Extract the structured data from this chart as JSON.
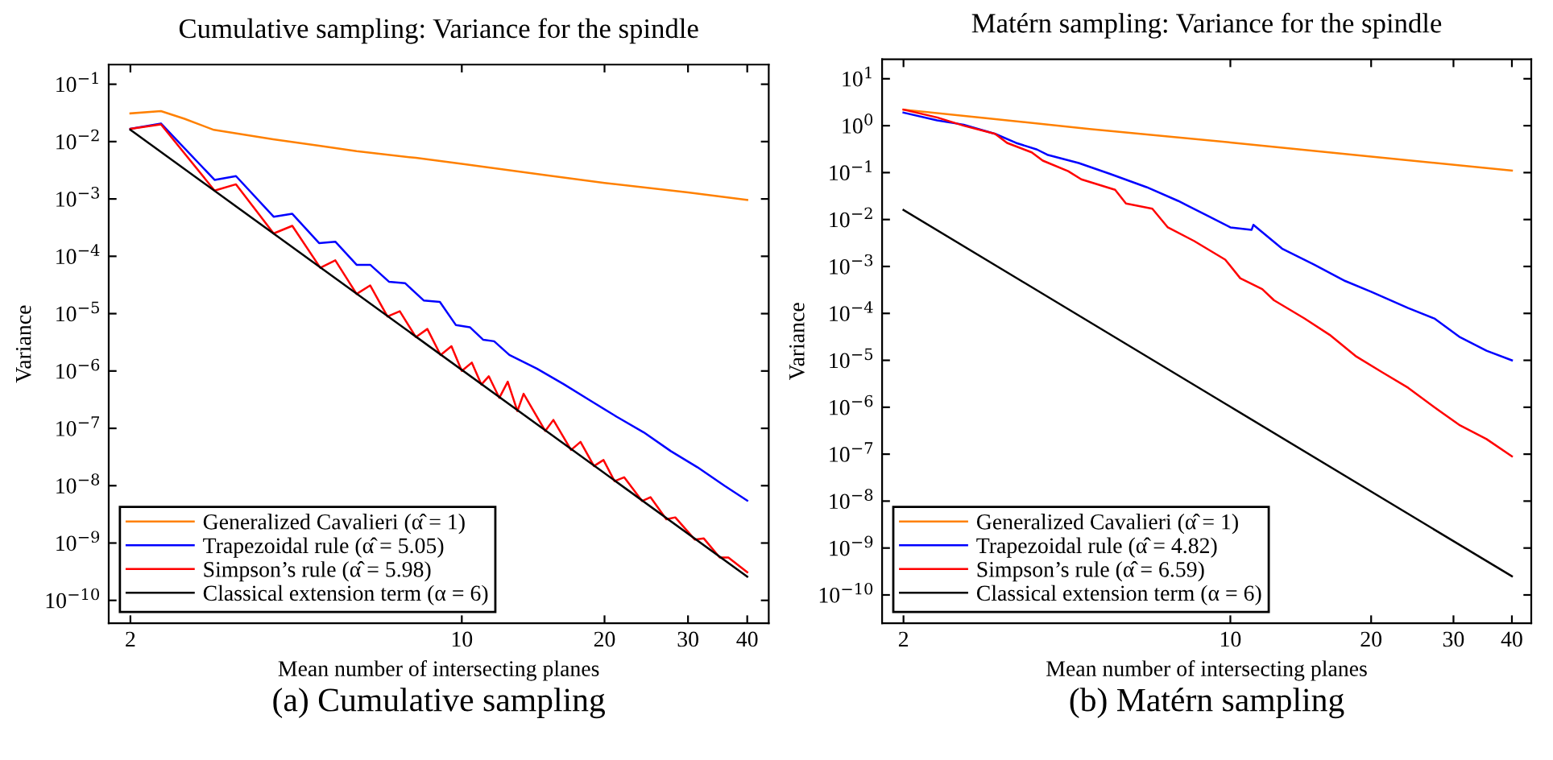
{
  "chart_data": [
    {
      "type": "line",
      "title": "Cumulative sampling: Variance for the spindle",
      "xlabel": "Mean number of intersecting planes",
      "ylabel": "Variance",
      "log": "xy",
      "grid": false,
      "legend": "bottom left",
      "xlim": [
        1.8,
        44.4
      ],
      "ylim": [
        4e-11,
        0.22
      ],
      "xticks": [
        2,
        10,
        20,
        30,
        40
      ],
      "yticks": [
        {
          "value": 0.1,
          "label": "10$^{−1}$"
        },
        {
          "value": 0.01,
          "label": "10$^{−2}$"
        },
        {
          "value": 0.001,
          "label": "10$^{−3}$"
        },
        {
          "value": 0.0001,
          "label": "10$^{−4}$"
        },
        {
          "value": 1e-05,
          "label": "10$^{−5}$"
        },
        {
          "value": 1e-06,
          "label": "10$^{−6}$"
        },
        {
          "value": 1e-07,
          "label": "10$^{−7}$"
        },
        {
          "value": 1e-08,
          "label": "10$^{−8}$"
        },
        {
          "value": 1e-09,
          "label": "10$^{−9}$"
        },
        {
          "value": 1e-10,
          "label": "10$^{−10}$"
        }
      ],
      "annotations": [
        "(a) Cumulative sampling"
      ],
      "series": [
        {
          "name": "Generalized Cavalieri (α̂ = 1)",
          "color": "#ff8000",
          "x": [
            2,
            2.32,
            2.6,
            3.0,
            4,
            5,
            6,
            8,
            10,
            15,
            20,
            30,
            40
          ],
          "values": [
            0.031,
            0.034,
            0.025,
            0.016,
            0.011,
            0.0085,
            0.0068,
            0.0052,
            0.0041,
            0.0026,
            0.0019,
            0.0013,
            0.00096
          ]
        },
        {
          "name": "Trapezoidal rule (α̂ = 5.05)",
          "color": "#0000ff",
          "x": [
            2,
            2.32,
            3.01,
            3.34,
            4.01,
            4.39,
            5.0,
            5.41,
            6.0,
            6.41,
            7.02,
            7.59,
            8.31,
            8.99,
            9.72,
            10.4,
            11.1,
            11.7,
            12.6,
            14.4,
            16.4,
            18.6,
            21.2,
            24.2,
            27.6,
            31.4,
            35.8,
            40
          ],
          "values": [
            0.0167,
            0.0207,
            0.00215,
            0.0025,
            0.00049,
            0.00055,
            0.00017,
            0.00018,
            7.1e-05,
            7.1e-05,
            3.6e-05,
            3.4e-05,
            1.7e-05,
            1.6e-05,
            6.3e-06,
            5.8e-06,
            3.5e-06,
            3.3e-06,
            1.9e-06,
            1.1e-06,
            5.9e-07,
            3.1e-07,
            1.6e-07,
            8.5e-08,
            4e-08,
            2.1e-08,
            1e-08,
            5.5e-09
          ]
        },
        {
          "name": "Simpson’s rule (α̂ = 5.98)",
          "color": "#ff0000",
          "x": [
            2,
            2.32,
            3.01,
            3.34,
            4.01,
            4.39,
            5.03,
            5.41,
            6.0,
            6.41,
            6.97,
            7.4,
            8.0,
            8.46,
            9.02,
            9.51,
            10.0,
            10.5,
            11.0,
            11.4,
            12.0,
            12.5,
            13.1,
            13.5,
            15,
            15.6,
            17,
            17.8,
            19,
            19.9,
            21,
            22,
            24,
            25,
            27,
            28.2,
            31,
            32.4,
            35,
            36.5,
            40
          ],
          "values": [
            0.0167,
            0.02,
            0.0014,
            0.0018,
            0.00025,
            0.00034,
            6.3e-05,
            8.5e-05,
            2.2e-05,
            3.1e-05,
            8.9e-06,
            1.1e-05,
            3.9e-06,
            5.4e-06,
            1.9e-06,
            2.7e-06,
            1e-06,
            1.4e-06,
            5.8e-07,
            8.1e-07,
            3.4e-07,
            6.5e-07,
            2e-07,
            4e-07,
            9e-08,
            1.4e-07,
            4.2e-08,
            5.8e-08,
            2.2e-08,
            2.8e-08,
            1.2e-08,
            1.4e-08,
            5.4e-09,
            6.3e-09,
            2.6e-09,
            2.8e-09,
            1.15e-09,
            1.2e-09,
            5.6e-10,
            5.6e-10,
            3.1e-10
          ]
        },
        {
          "name": "Classical extension term (α = 6)",
          "color": "#000000",
          "x": [
            2,
            40
          ],
          "values": [
            0.016,
            2.6e-10
          ]
        }
      ]
    },
    {
      "type": "line",
      "title": "Matérn sampling: Variance for the spindle",
      "xlabel": "Mean number of intersecting planes",
      "ylabel": "Variance",
      "log": "xy",
      "grid": false,
      "legend": "bottom left",
      "xlim": [
        1.8,
        44
      ],
      "ylim": [
        2.5e-11,
        26
      ],
      "xticks": [
        2,
        10,
        20,
        30,
        40
      ],
      "yticks": [
        {
          "value": 10,
          "label": "10$^{1}$"
        },
        {
          "value": 1,
          "label": "10$^{0}$"
        },
        {
          "value": 0.1,
          "label": "10$^{−1}$"
        },
        {
          "value": 0.01,
          "label": "10$^{−2}$"
        },
        {
          "value": 0.001,
          "label": "10$^{−3}$"
        },
        {
          "value": 0.0001,
          "label": "10$^{−4}$"
        },
        {
          "value": 1e-05,
          "label": "10$^{−5}$"
        },
        {
          "value": 1e-06,
          "label": "10$^{−6}$"
        },
        {
          "value": 1e-07,
          "label": "10$^{−7}$"
        },
        {
          "value": 1e-08,
          "label": "10$^{−8}$"
        },
        {
          "value": 1e-09,
          "label": "10$^{−9}$"
        },
        {
          "value": 1e-10,
          "label": "10$^{−10}$"
        }
      ],
      "annotations": [
        "(b) Matérn sampling"
      ],
      "series": [
        {
          "name": "Generalized Cavalieri (α̂ = 1)",
          "color": "#ff8000",
          "x": [
            2,
            3,
            5,
            10,
            20,
            40
          ],
          "values": [
            2.2,
            1.45,
            0.85,
            0.44,
            0.22,
            0.11
          ]
        },
        {
          "name": "Trapezoidal rule (α̂ = 4.82)",
          "color": "#0000ff",
          "x": [
            2,
            2.36,
            2.69,
            3.14,
            3.48,
            3.86,
            4.06,
            4.74,
            5.53,
            6.62,
            7.73,
            9.02,
            10,
            11.1,
            11.2,
            12.9,
            15.1,
            17.6,
            20,
            24,
            27.3,
            31,
            35.3,
            40
          ],
          "values": [
            1.9,
            1.3,
            1.05,
            0.67,
            0.43,
            0.31,
            0.24,
            0.16,
            0.094,
            0.049,
            0.025,
            0.0115,
            0.0068,
            0.006,
            0.0077,
            0.0024,
            0.0011,
            0.00049,
            0.00029,
            0.00013,
            7.8e-05,
            3.1e-05,
            1.6e-05,
            1e-05
          ]
        },
        {
          "name": "Simpson’s rule (α̂ = 6.59)",
          "color": "#ff0000",
          "x": [
            2,
            2.36,
            2.69,
            3.14,
            3.33,
            3.76,
            3.97,
            4.5,
            4.8,
            5.67,
            5.98,
            6.81,
            7.35,
            8.36,
            9.75,
            10.5,
            11.7,
            12.4,
            14.4,
            16.3,
            18.6,
            21.1,
            24,
            27.3,
            31,
            35.3,
            40
          ],
          "values": [
            2.2,
            1.5,
            1.0,
            0.67,
            0.43,
            0.27,
            0.18,
            0.107,
            0.072,
            0.043,
            0.022,
            0.017,
            0.0068,
            0.0035,
            0.0014,
            0.00056,
            0.00033,
            0.00019,
            7.8e-05,
            3.5e-05,
            1.2e-05,
            5.6e-06,
            2.6e-06,
            1e-06,
            4.1e-07,
            2.1e-07,
            9e-08
          ]
        },
        {
          "name": "Classical extension term (α = 6)",
          "color": "#000000",
          "x": [
            2,
            40
          ],
          "values": [
            0.016,
            2.5e-10
          ]
        }
      ]
    }
  ]
}
